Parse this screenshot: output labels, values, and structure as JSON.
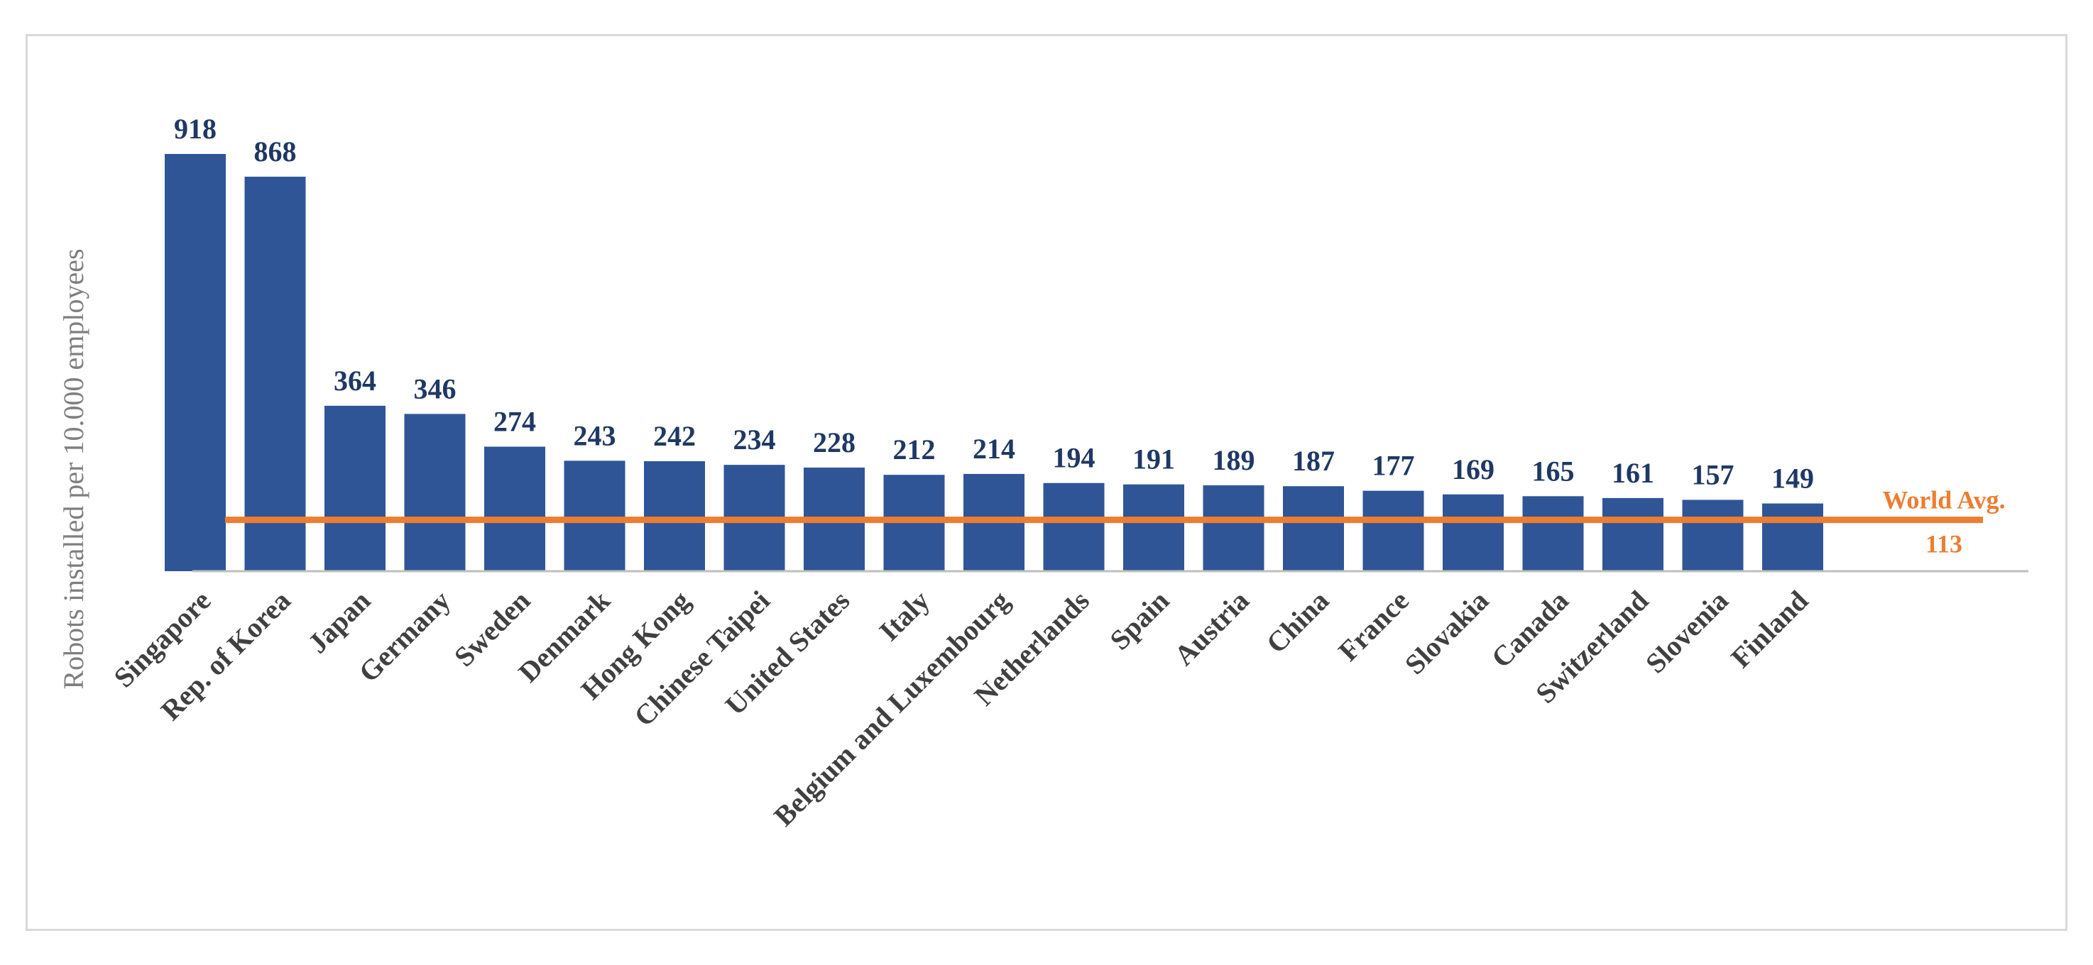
{
  "chart_data": {
    "type": "bar",
    "title": "",
    "xlabel": "",
    "ylabel": "Robots installed per 10.000 employees",
    "categories": [
      "Singapore",
      "Rep. of Korea",
      "Japan",
      "Germany",
      "Sweden",
      "Denmark",
      "Hong Kong",
      "Chinese Taipei",
      "United States",
      "Italy",
      "Belgium and Luxembourg",
      "Netherlands",
      "Spain",
      "Austria",
      "China",
      "France",
      "Slovakia",
      "Canada",
      "Switzerland",
      "Slovenia",
      "Finland"
    ],
    "values": [
      918,
      868,
      364,
      346,
      274,
      243,
      242,
      234,
      228,
      212,
      214,
      194,
      191,
      189,
      187,
      177,
      169,
      165,
      161,
      157,
      149
    ],
    "ylim": [
      0,
      1000
    ],
    "grid": false,
    "bar_color": "#2f5597",
    "label_color": "#1f3864",
    "reference_line": {
      "label": "World Avg.",
      "value": 113,
      "value_label": "113",
      "color": "#ed7d31"
    }
  }
}
